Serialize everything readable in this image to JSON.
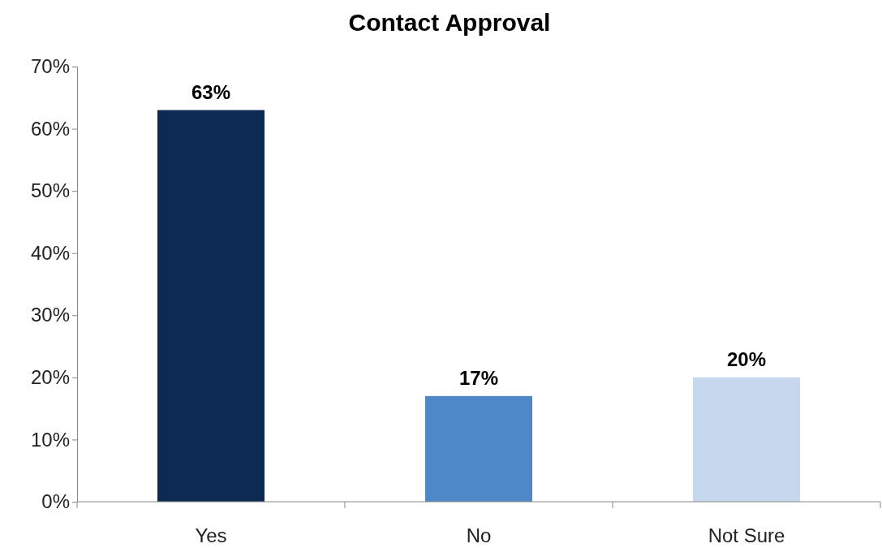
{
  "chart_data": {
    "type": "bar",
    "title": "Contact Approval",
    "categories": [
      "Yes",
      "No",
      "Not Sure"
    ],
    "values": [
      63,
      17,
      20
    ],
    "colors": [
      "#0c2a52",
      "#4f88c9",
      "#c6d7ee"
    ],
    "value_labels": [
      "63%",
      "17%",
      "20%"
    ],
    "ylim": [
      0,
      70
    ],
    "yticks": [
      {
        "value": 0,
        "label": "0%"
      },
      {
        "value": 10,
        "label": "10%"
      },
      {
        "value": 20,
        "label": "20%"
      },
      {
        "value": 30,
        "label": "30%"
      },
      {
        "value": 40,
        "label": "40%"
      },
      {
        "value": 50,
        "label": "50%"
      },
      {
        "value": 60,
        "label": "60%"
      },
      {
        "value": 70,
        "label": "70%"
      }
    ],
    "grid": false
  }
}
